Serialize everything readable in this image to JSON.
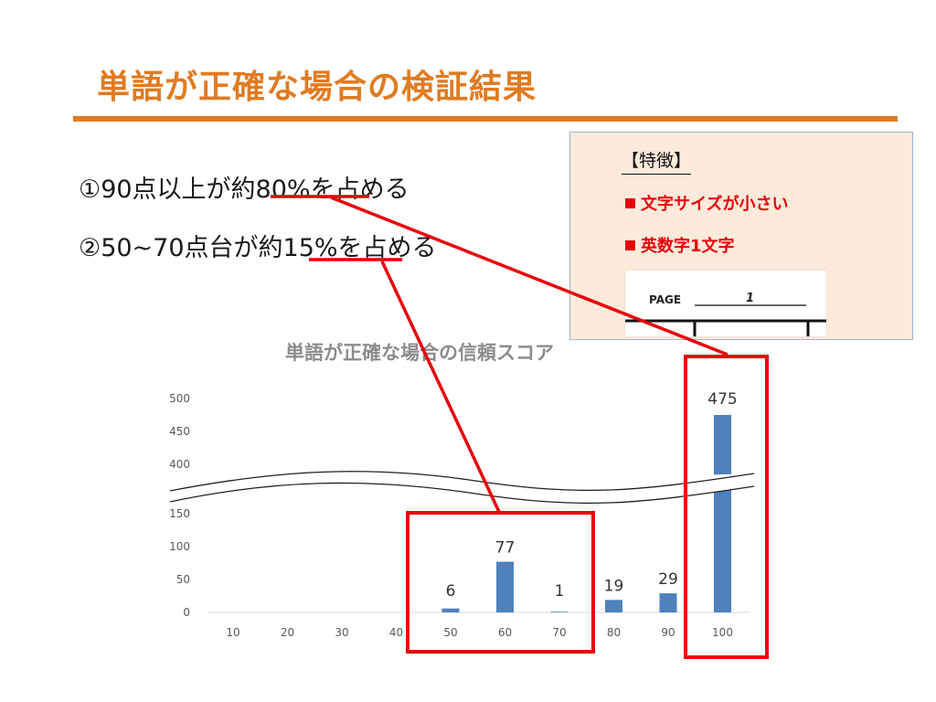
{
  "slide": {
    "title": "単語が正確な場合の検証結果",
    "points": [
      "①90点以上が約80%を占める",
      "②50~70点台が約15%を占める"
    ]
  },
  "features": {
    "heading": "【特徴】",
    "items": [
      "文字サイズが小さい",
      "英数字1文字"
    ],
    "sample_label": "PAGE",
    "sample_value": "1"
  },
  "colors": {
    "accent": "#e07b22",
    "bar": "#4f81bd",
    "highlight": "#e8000a"
  },
  "chart_data": {
    "type": "bar",
    "title": "単語が正確な場合の信頼スコア",
    "categories": [
      "10",
      "20",
      "30",
      "40",
      "50",
      "60",
      "70",
      "80",
      "90",
      "100"
    ],
    "values": [
      0,
      0,
      0,
      0,
      6,
      77,
      1,
      19,
      29,
      475
    ],
    "data_labels": [
      "",
      "",
      "",
      "",
      "6",
      "77",
      "1",
      "19",
      "29",
      "475"
    ],
    "y_ticks_lower": [
      "0",
      "50",
      "100",
      "150"
    ],
    "y_ticks_upper": [
      "400",
      "450",
      "500"
    ],
    "axis_break": [
      150,
      400
    ],
    "grid": false,
    "legend": "none"
  }
}
